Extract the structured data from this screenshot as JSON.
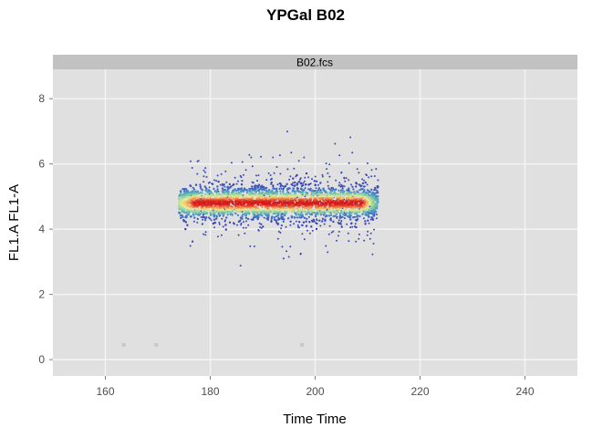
{
  "chart_data": {
    "type": "scatter",
    "title": "YPGal B02",
    "panel_label": "B02.fcs",
    "xlabel": "Time Time",
    "ylabel": "FL1.A FL1-A",
    "xlim": [
      150,
      250
    ],
    "ylim": [
      -0.5,
      8.9
    ],
    "x_ticks": [
      160,
      180,
      200,
      220,
      240
    ],
    "y_ticks": [
      0,
      2,
      4,
      6,
      8
    ],
    "grid": true,
    "density_coloring": "spectral (blue low to red high)",
    "main_population": {
      "x_range": [
        172,
        212
      ],
      "y_center": 4.8,
      "y_core_spread": 0.15,
      "y_outlier_range": [
        2.6,
        7.0
      ]
    },
    "isolated_points": [
      {
        "x": 163.5,
        "y": 0.45
      },
      {
        "x": 169.7,
        "y": 0.45
      },
      {
        "x": 197.5,
        "y": 0.45
      }
    ],
    "colors": {
      "panel_bg": "#e0e0e0",
      "strip_bg": "#c2c2c2",
      "grid": "#f5f5f5",
      "low_density": "#3b3bb3",
      "mid_density": "#7fd0a0",
      "high_density": "#d7191c"
    }
  }
}
